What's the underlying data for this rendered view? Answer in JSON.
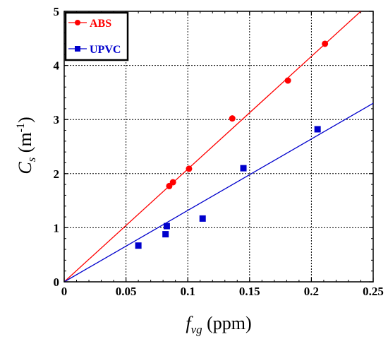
{
  "chart_data": {
    "type": "scatter",
    "xlabel": {
      "main": "f",
      "sub": "vg",
      "rest": " (ppm)"
    },
    "ylabel": {
      "main": "C",
      "sub": "s",
      "unit_open": " (m",
      "sup": "-1",
      "unit_close": ")"
    },
    "xlim": [
      0,
      0.25
    ],
    "ylim": [
      0,
      5
    ],
    "xticks": [
      "0",
      "0.05",
      "0.1",
      "0.15",
      "0.2",
      "0.25"
    ],
    "yticks": [
      "0",
      "1",
      "2",
      "3",
      "4",
      "5"
    ],
    "grid": "dotted",
    "legend_position": "top-left",
    "series": [
      {
        "name": "ABS",
        "color": "#ff0000",
        "marker": "circle",
        "points": [
          [
            0.085,
            1.77
          ],
          [
            0.088,
            1.84
          ],
          [
            0.101,
            2.09
          ],
          [
            0.136,
            3.02
          ],
          [
            0.181,
            3.72
          ],
          [
            0.211,
            4.4
          ]
        ],
        "fit_line": [
          [
            0,
            0
          ],
          [
            0.24,
            5.0
          ]
        ]
      },
      {
        "name": "UPVC",
        "color": "#0000cc",
        "marker": "square",
        "points": [
          [
            0.06,
            0.67
          ],
          [
            0.082,
            0.88
          ],
          [
            0.083,
            1.03
          ],
          [
            0.112,
            1.17
          ],
          [
            0.145,
            2.1
          ],
          [
            0.205,
            2.82
          ]
        ],
        "fit_line": [
          [
            0,
            0
          ],
          [
            0.25,
            3.3
          ]
        ]
      }
    ]
  }
}
